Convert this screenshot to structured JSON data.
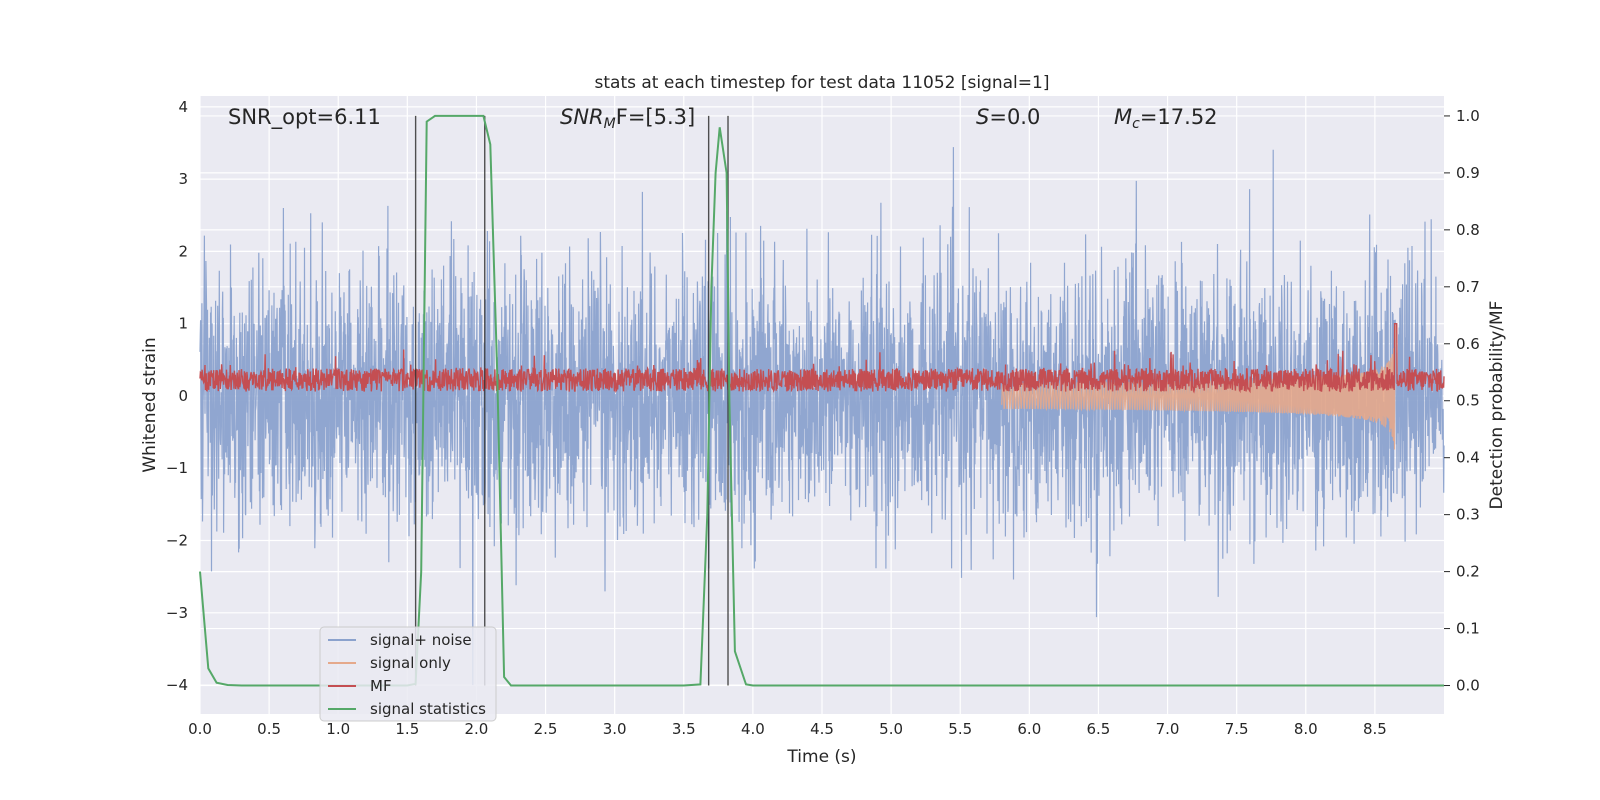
{
  "chart_data": {
    "type": "line",
    "title": "stats at each timestep for test data 11052 [signal=1]",
    "xlabel": "Time (s)",
    "ylabel_left": "Whitened strain",
    "ylabel_right": "Detection probability/MF",
    "xlim": [
      0,
      9.0
    ],
    "ylim_left": [
      -4.4,
      4.15
    ],
    "ylim_right": [
      -0.05,
      1.035
    ],
    "xticks": [
      "0.0",
      "0.5",
      "1.0",
      "1.5",
      "2.0",
      "2.5",
      "3.0",
      "3.5",
      "4.0",
      "4.5",
      "5.0",
      "5.5",
      "6.0",
      "6.5",
      "7.0",
      "7.5",
      "8.0",
      "8.5"
    ],
    "yticks_left": [
      "−4",
      "−3",
      "−2",
      "−1",
      "0",
      "1",
      "2",
      "3",
      "4"
    ],
    "yticks_right": [
      "0.0",
      "0.1",
      "0.2",
      "0.3",
      "0.4",
      "0.5",
      "0.6",
      "0.7",
      "0.8",
      "0.9",
      "1.0"
    ],
    "grid": true,
    "legend_position": "lower-left",
    "annotations": {
      "snr_opt": "SNR_opt=6.11",
      "snr_mf_prefix": "SNR",
      "snr_mf_sub": "M",
      "snr_mf_suffix": "F=[5.3]",
      "s_sym": "S",
      "s_val": "=0.0",
      "mc_sym": "M",
      "mc_sub": "c",
      "mc_val": "=17.52"
    },
    "series": [
      {
        "name": "signal+ noise",
        "color": "#8ba2cd",
        "axis": "left",
        "description": "whitened noise, approx std 0.9"
      },
      {
        "name": "signal only",
        "color": "#e5a98b",
        "axis": "left",
        "chirp_end_time": 8.65,
        "chirp_peak_amplitude": 1.15
      },
      {
        "name": "MF",
        "color": "#c44e52",
        "axis": "left",
        "mean": 0.22,
        "peak_time": 8.65,
        "peak_value": 1.0
      },
      {
        "name": "signal statistics",
        "color": "#55a868",
        "axis": "right",
        "x": [
          0.0,
          0.06,
          0.12,
          0.2,
          0.3,
          0.6,
          1.0,
          1.3,
          1.5,
          1.56,
          1.6,
          1.64,
          1.7,
          2.0,
          2.05,
          2.1,
          2.15,
          2.2,
          2.25,
          2.5,
          3.0,
          3.5,
          3.62,
          3.67,
          3.7,
          3.73,
          3.76,
          3.81,
          3.83,
          3.87,
          3.95,
          4.0,
          4.5,
          5.0,
          6.0,
          7.0,
          8.0,
          9.0
        ],
        "y": [
          0.2,
          0.03,
          0.005,
          0.001,
          0.0,
          0.0,
          0.0,
          0.0,
          0.0,
          0.003,
          0.2,
          0.99,
          1.0,
          1.0,
          1.0,
          0.95,
          0.55,
          0.015,
          0.0,
          0.0,
          0.0,
          0.0,
          0.002,
          0.3,
          0.7,
          0.9,
          0.98,
          0.9,
          0.5,
          0.06,
          0.002,
          0.0,
          0.0,
          0.0,
          0.0,
          0.0,
          0.0,
          0.0
        ]
      }
    ],
    "vlines": [
      1.56,
      2.06,
      3.68,
      3.82
    ]
  }
}
